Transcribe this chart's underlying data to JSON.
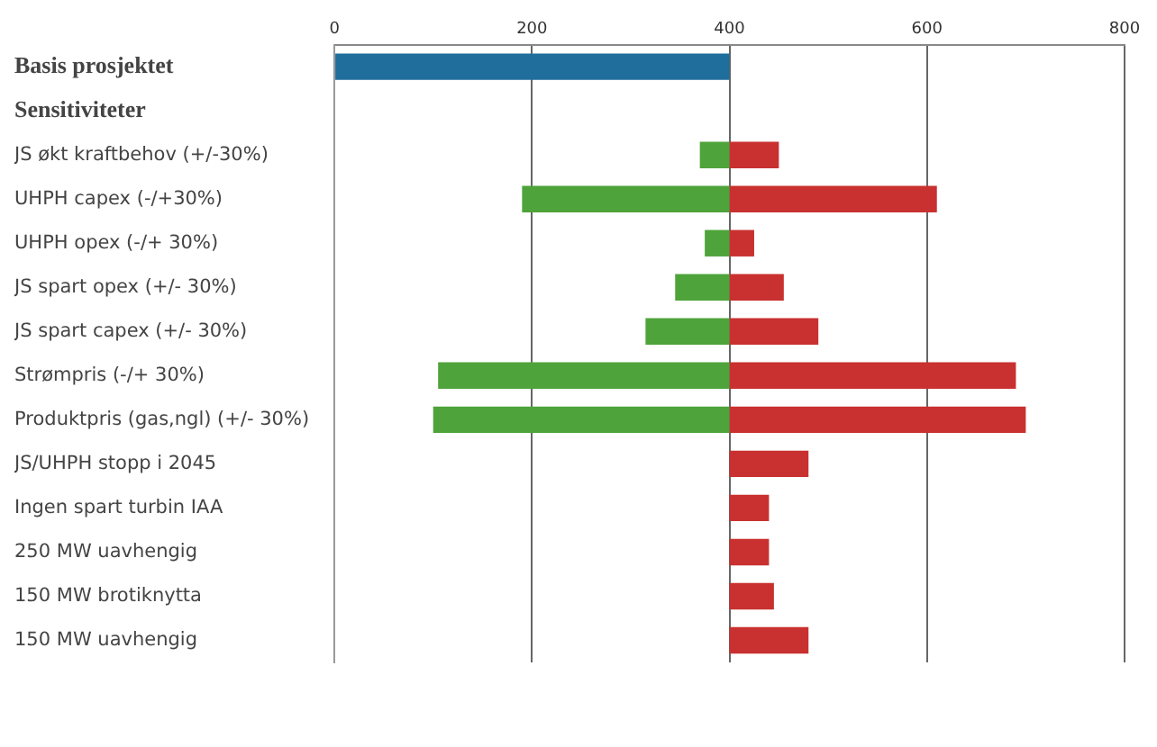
{
  "chart_data": {
    "type": "bar",
    "orientation": "horizontal",
    "stacked": true,
    "categories": [
      "Basis prosjektet",
      "Sensitiviteter",
      "JS økt kraftbehov (+/-30%)",
      "UHPH capex (-/+30%)",
      "UHPH opex (-/+ 30%)",
      "JS spart opex (+/- 30%)",
      "JS spart capex (+/- 30%)",
      "Strømpris (-/+ 30%)",
      "Produktpris (gas,ngl) (+/- 30%)",
      "JS/UHPH stopp i 2045",
      "Ingen spart turbin IAA",
      "250 MW uavhengig",
      "150 MW brotiknytta",
      "150 MW uavhengig"
    ],
    "series": [
      {
        "color": "#1f6e9c",
        "values": [
          400,
          null,
          null,
          null,
          null,
          null,
          null,
          null,
          null,
          null,
          null,
          null,
          null,
          null
        ],
        "base": [
          0,
          null,
          null,
          null,
          null,
          null,
          null,
          null,
          null,
          null,
          null,
          null,
          null,
          null
        ]
      },
      {
        "color": "#4ea33a",
        "values": [
          null,
          null,
          30,
          210,
          25,
          55,
          85,
          295,
          300,
          null,
          null,
          null,
          null,
          null
        ],
        "base": [
          null,
          null,
          370,
          190,
          375,
          345,
          315,
          105,
          100,
          null,
          null,
          null,
          null,
          null
        ]
      },
      {
        "color": "#c8312f",
        "values": [
          null,
          null,
          50,
          210,
          25,
          55,
          90,
          290,
          300,
          80,
          40,
          40,
          45,
          80
        ],
        "base": [
          null,
          null,
          400,
          400,
          400,
          400,
          400,
          400,
          400,
          400,
          400,
          400,
          400,
          400
        ]
      }
    ],
    "xlim": [
      0,
      800
    ],
    "xticks": [
      0,
      200,
      400,
      600,
      800
    ],
    "grid": "x",
    "legend": false
  }
}
